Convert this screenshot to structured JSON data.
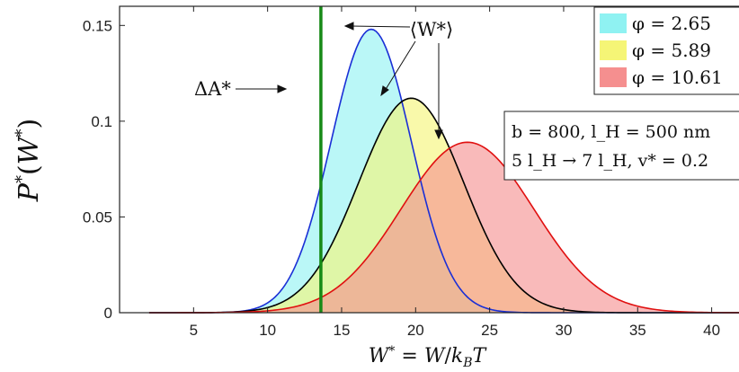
{
  "chart_data": {
    "type": "area",
    "title": "",
    "xlabel": "W* = W/k_B T",
    "ylabel": "P*(W*)",
    "xlim": [
      0,
      43
    ],
    "ylim": [
      0,
      0.16
    ],
    "xticks": [
      5,
      10,
      15,
      20,
      25,
      30,
      35,
      40
    ],
    "yticks": [
      0,
      0.05,
      0.1,
      0.15
    ],
    "ytick_labels": [
      "0",
      "0.05",
      "0.1",
      "0.15"
    ],
    "grid": false,
    "legend_position": "top-right",
    "series": [
      {
        "name": "φ = 2.65",
        "mean": 17.0,
        "sd": 2.7,
        "peak": 0.148,
        "fill": "#8ff2f2",
        "line": "#1a2fd6"
      },
      {
        "name": "φ = 5.89",
        "mean": 19.7,
        "sd": 3.55,
        "peak": 0.112,
        "fill": "#f5f576",
        "line": "#000000"
      },
      {
        "name": "φ = 10.61",
        "mean": 23.5,
        "sd": 4.5,
        "peak": 0.089,
        "fill": "#f58f8f",
        "line": "#e01010"
      }
    ],
    "vertical_line": {
      "x": 13.6,
      "color": "#168a16",
      "label": "ΔA*"
    },
    "annotations": {
      "mean_label": "⟨W*⟩",
      "params_line1": "b = 800, l_H = 500 nm",
      "params_line2": "5 l_H → 7 l_H, v* = 0.2"
    }
  }
}
